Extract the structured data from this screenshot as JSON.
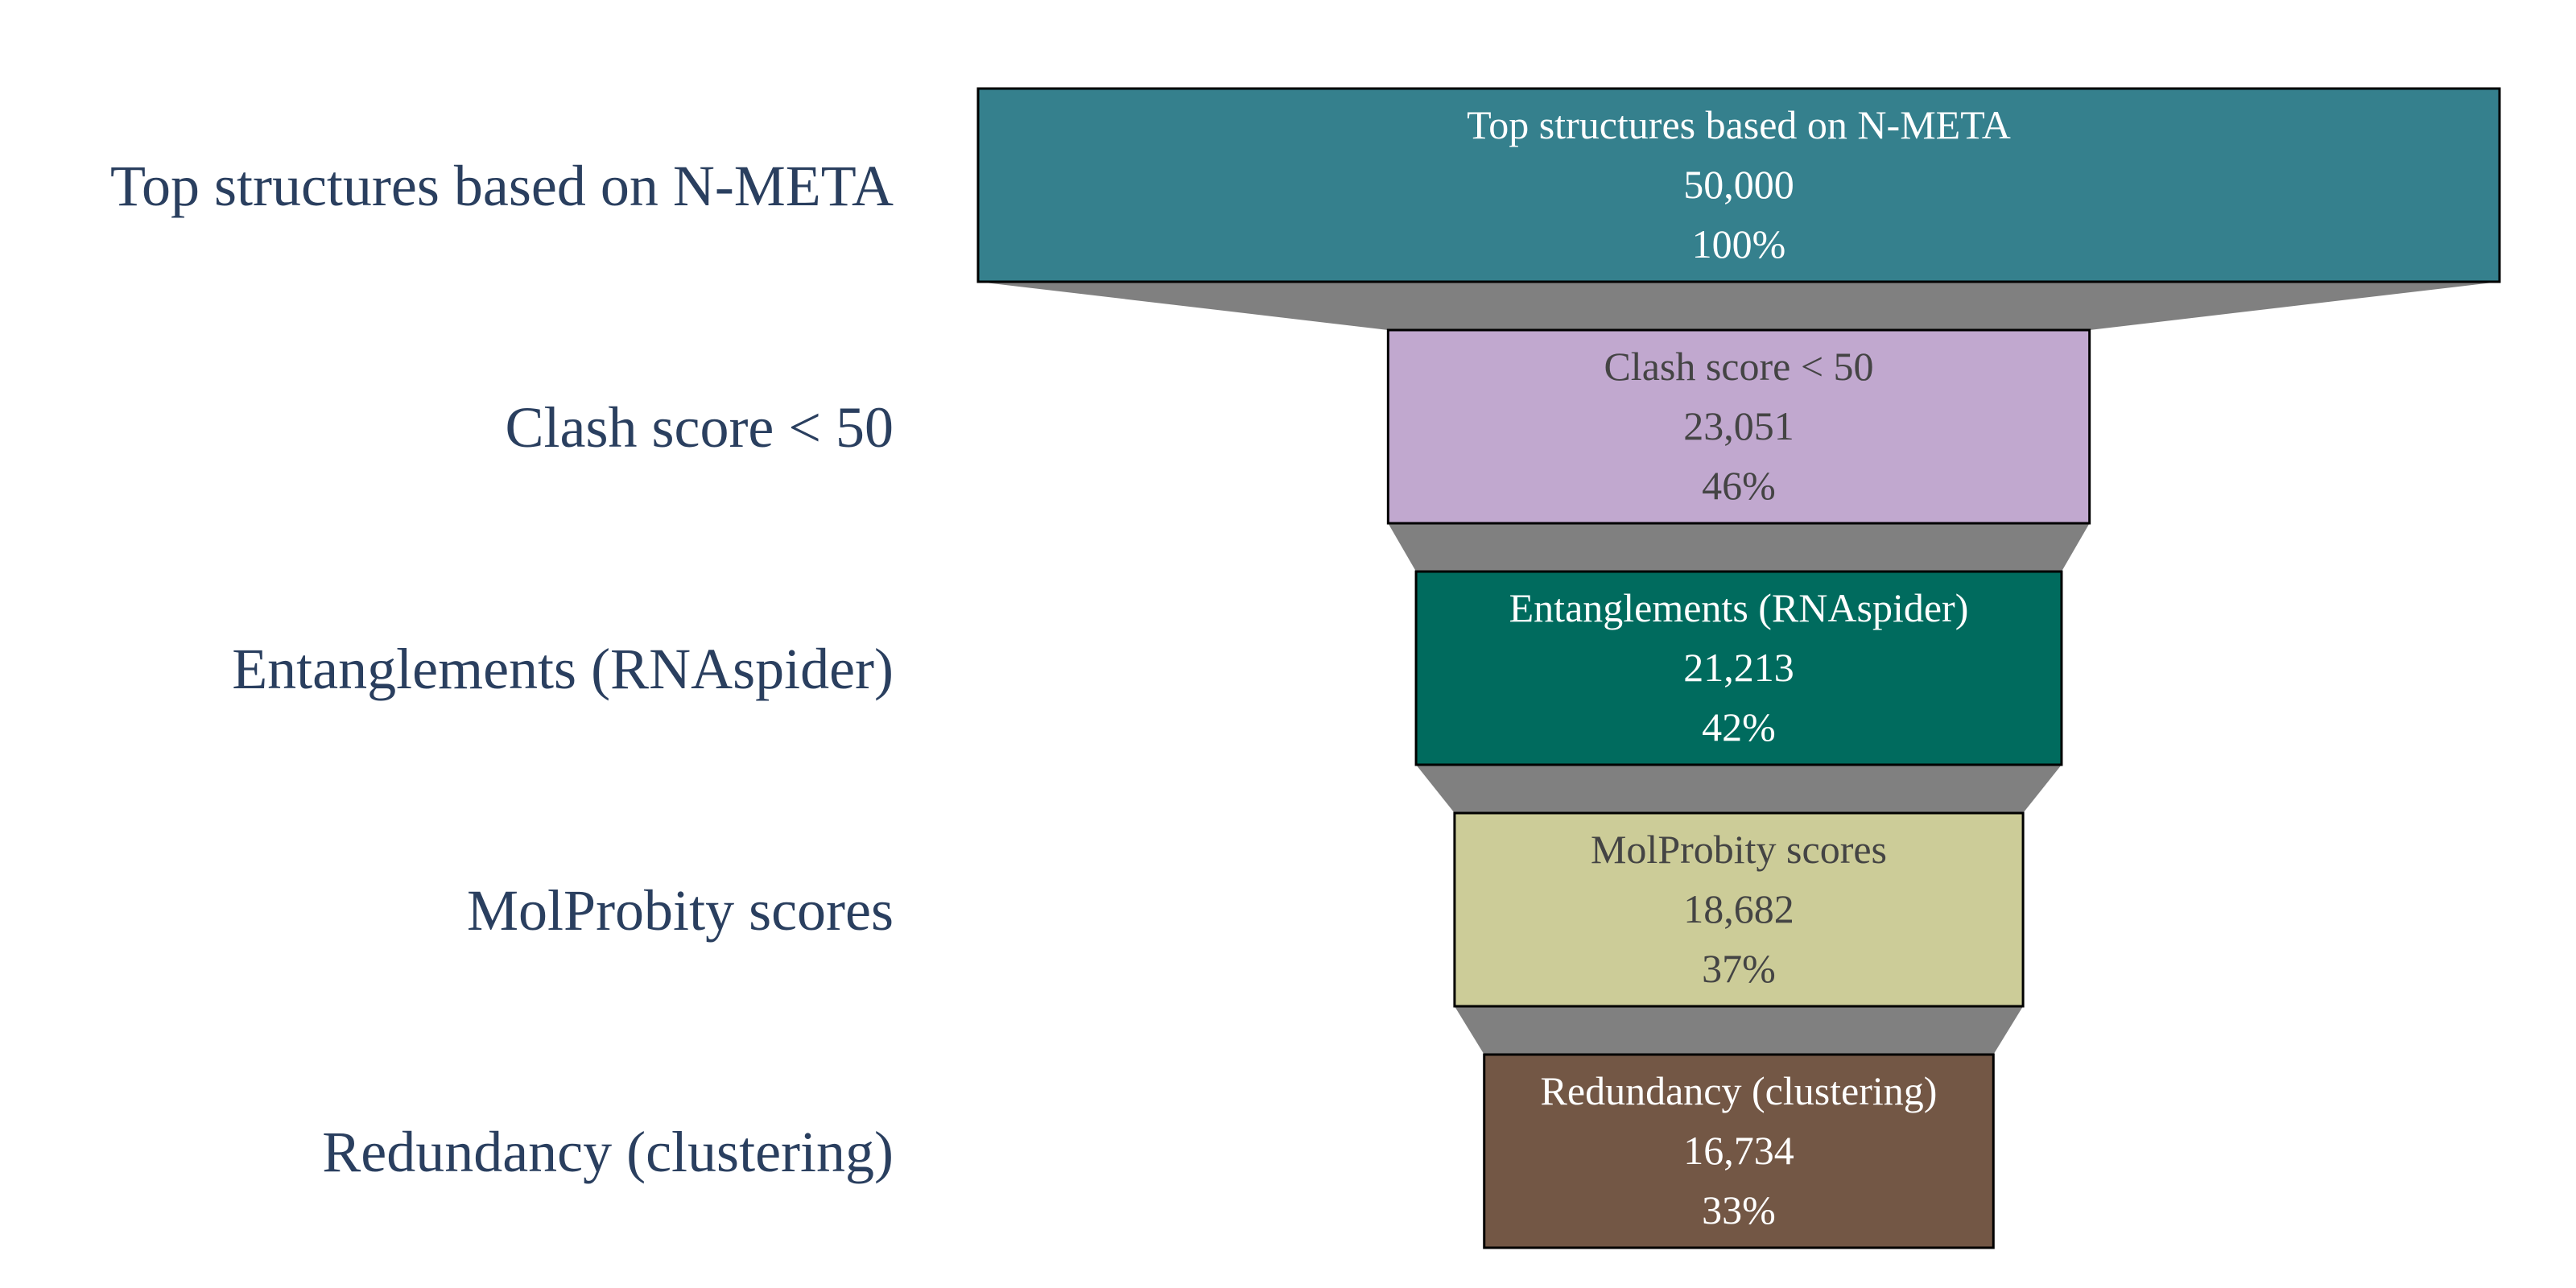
{
  "chart_data": {
    "type": "funnel",
    "stages": [
      {
        "label": "Top structures based on N-META",
        "value": 50000,
        "value_text": "50,000",
        "percent": 100,
        "percent_text": "100%",
        "color": "#35808d",
        "text_color": "#ffffff"
      },
      {
        "label": "Clash score < 50",
        "value": 23051,
        "value_text": "23,051",
        "percent": 46,
        "percent_text": "46%",
        "color": "#c1a8cf",
        "text_color": "#444444"
      },
      {
        "label": "Entanglements (RNAspider)",
        "value": 21213,
        "value_text": "21,213",
        "percent": 42,
        "percent_text": "42%",
        "color": "#006b5e",
        "text_color": "#ffffff"
      },
      {
        "label": "MolProbity scores",
        "value": 18682,
        "value_text": "18,682",
        "percent": 37,
        "percent_text": "37%",
        "color": "#cccc98",
        "text_color": "#444444"
      },
      {
        "label": "Redundancy (clustering)",
        "value": 16734,
        "value_text": "16,734",
        "percent": 33,
        "percent_text": "33%",
        "color": "#735745",
        "text_color": "#ffffff"
      }
    ],
    "connector_color": "#808080",
    "label_color": "#2a3f5f"
  }
}
